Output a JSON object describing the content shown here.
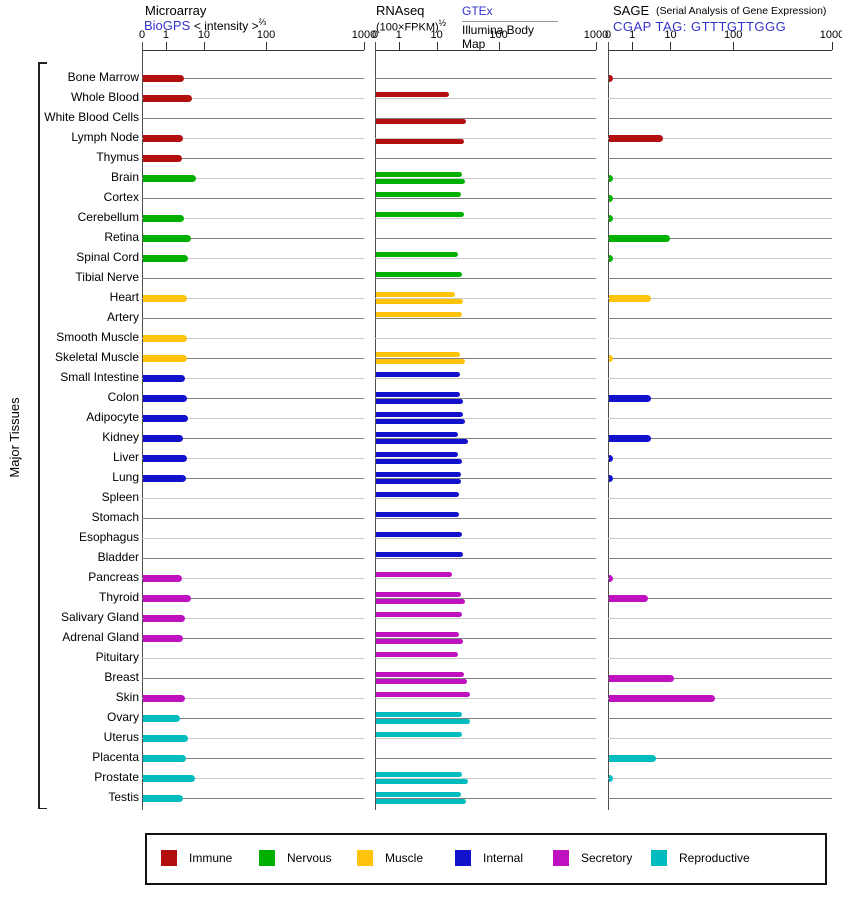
{
  "sidebar": {
    "label": "Major Tissues"
  },
  "panels": {
    "microarray": {
      "title": "Microarray",
      "link": "BioGPS",
      "unit": "< intensity >",
      "unit_sup": "⅔",
      "ticks": [
        "0",
        "1",
        "10",
        "100",
        "1000"
      ]
    },
    "rnaseq": {
      "title": "RNAseq",
      "unit": "(100×FPKM)",
      "unit_sup": "½",
      "link1": "GTEx",
      "link2": "Illumina Body Map",
      "ticks": [
        "0",
        "1",
        "10",
        "100",
        "1000"
      ]
    },
    "sage": {
      "title": "SAGE",
      "note": "(Serial Analysis of Gene Expression)",
      "link": "CGAP TAG: GTTTGTTGGG",
      "ticks": [
        "0",
        "1",
        "10",
        "100",
        "1000"
      ]
    }
  },
  "legend": [
    {
      "label": "Immune",
      "color": "#B40F0F"
    },
    {
      "label": "Nervous",
      "color": "#00B000"
    },
    {
      "label": "Muscle",
      "color": "#FFC30B"
    },
    {
      "label": "Internal",
      "color": "#1212CD"
    },
    {
      "label": "Secretory",
      "color": "#C011C0"
    },
    {
      "label": "Reproductive",
      "color": "#00BCBE"
    }
  ],
  "track_colors": {
    "dark": "#808080",
    "light": "#C9C9C9"
  },
  "chart_data": {
    "type": "bar",
    "orientation": "horizontal",
    "axis_scale": "compressed log, anchors 0/1/10/100/1000 at 0%/10.8%/27.9%/55.9%/100%",
    "axis_ticks": [
      0,
      1,
      10,
      100,
      1000
    ],
    "series_meaning": {
      "microarray": "BioGPS intensity, single bar",
      "rnaseq_gtex": "upper thin bar (GTEx)",
      "rnaseq_bodymap": "lower thin bar (Illumina Body Map)",
      "sage": "CGAP SAGE tag count, single bar (0.15 = tiny tick)"
    },
    "tissues": [
      {
        "name": "Bone Marrow",
        "group": "Immune",
        "microarray": 2.8,
        "rnaseq_gtex": null,
        "rnaseq_bodymap": null,
        "sage": 0.15
      },
      {
        "name": "Whole Blood",
        "group": "Immune",
        "microarray": 4.5,
        "rnaseq_gtex": 15,
        "rnaseq_bodymap": null,
        "sage": null
      },
      {
        "name": "White Blood Cells",
        "group": "Immune",
        "microarray": null,
        "rnaseq_gtex": null,
        "rnaseq_bodymap": 29,
        "sage": null
      },
      {
        "name": "Lymph Node",
        "group": "Immune",
        "microarray": 2.6,
        "rnaseq_gtex": null,
        "rnaseq_bodymap": 27,
        "sage": 6
      },
      {
        "name": "Thymus",
        "group": "Immune",
        "microarray": 2.5,
        "rnaseq_gtex": null,
        "rnaseq_bodymap": null,
        "sage": null
      },
      {
        "name": "Brain",
        "group": "Nervous",
        "microarray": 5.8,
        "rnaseq_gtex": 25,
        "rnaseq_bodymap": 28,
        "sage": 0.15
      },
      {
        "name": "Cortex",
        "group": "Nervous",
        "microarray": null,
        "rnaseq_gtex": 24,
        "rnaseq_bodymap": null,
        "sage": 0.15
      },
      {
        "name": "Cerebellum",
        "group": "Nervous",
        "microarray": 2.8,
        "rnaseq_gtex": 27,
        "rnaseq_bodymap": null,
        "sage": 0.15
      },
      {
        "name": "Retina",
        "group": "Nervous",
        "microarray": 4.3,
        "rnaseq_gtex": null,
        "rnaseq_bodymap": null,
        "sage": 9
      },
      {
        "name": "Spinal Cord",
        "group": "Nervous",
        "microarray": 3.6,
        "rnaseq_gtex": 21,
        "rnaseq_bodymap": null,
        "sage": 0.15
      },
      {
        "name": "Tibial Nerve",
        "group": "Nervous",
        "microarray": null,
        "rnaseq_gtex": 25,
        "rnaseq_bodymap": null,
        "sage": null
      },
      {
        "name": "Heart",
        "group": "Muscle",
        "microarray": 3.4,
        "rnaseq_gtex": 19,
        "rnaseq_bodymap": 26,
        "sage": 3
      },
      {
        "name": "Artery",
        "group": "Muscle",
        "microarray": null,
        "rnaseq_gtex": 25,
        "rnaseq_bodymap": null,
        "sage": null
      },
      {
        "name": "Smooth Muscle",
        "group": "Muscle",
        "microarray": 3.4,
        "rnaseq_gtex": null,
        "rnaseq_bodymap": null,
        "sage": null
      },
      {
        "name": "Skeletal Muscle",
        "group": "Muscle",
        "microarray": 3.4,
        "rnaseq_gtex": 23,
        "rnaseq_bodymap": 28,
        "sage": 0.15
      },
      {
        "name": "Small Intestine",
        "group": "Internal",
        "microarray": 3.0,
        "rnaseq_gtex": 23,
        "rnaseq_bodymap": null,
        "sage": null
      },
      {
        "name": "Colon",
        "group": "Internal",
        "microarray": 3.4,
        "rnaseq_gtex": 23,
        "rnaseq_bodymap": 26,
        "sage": 3
      },
      {
        "name": "Adipocyte",
        "group": "Internal",
        "microarray": 3.6,
        "rnaseq_gtex": 26,
        "rnaseq_bodymap": 28,
        "sage": null
      },
      {
        "name": "Kidney",
        "group": "Internal",
        "microarray": 2.6,
        "rnaseq_gtex": 21,
        "rnaseq_bodymap": 31,
        "sage": 3
      },
      {
        "name": "Liver",
        "group": "Internal",
        "microarray": 3.4,
        "rnaseq_gtex": 21,
        "rnaseq_bodymap": 25,
        "sage": 0.15
      },
      {
        "name": "Lung",
        "group": "Internal",
        "microarray": 3.2,
        "rnaseq_gtex": 24,
        "rnaseq_bodymap": 24,
        "sage": 0.15
      },
      {
        "name": "Spleen",
        "group": "Internal",
        "microarray": null,
        "rnaseq_gtex": 22,
        "rnaseq_bodymap": null,
        "sage": null
      },
      {
        "name": "Stomach",
        "group": "Internal",
        "microarray": null,
        "rnaseq_gtex": 22,
        "rnaseq_bodymap": null,
        "sage": null
      },
      {
        "name": "Esophagus",
        "group": "Internal",
        "microarray": null,
        "rnaseq_gtex": 25,
        "rnaseq_bodymap": null,
        "sage": null
      },
      {
        "name": "Bladder",
        "group": "Internal",
        "microarray": null,
        "rnaseq_gtex": 26,
        "rnaseq_bodymap": null,
        "sage": null
      },
      {
        "name": "Pancreas",
        "group": "Secretory",
        "microarray": 2.5,
        "rnaseq_gtex": 17,
        "rnaseq_bodymap": null,
        "sage": 0.15
      },
      {
        "name": "Thyroid",
        "group": "Secretory",
        "microarray": 4.3,
        "rnaseq_gtex": 24,
        "rnaseq_bodymap": 28,
        "sage": 2.4
      },
      {
        "name": "Salivary Gland",
        "group": "Secretory",
        "microarray": 3.0,
        "rnaseq_gtex": 25,
        "rnaseq_bodymap": null,
        "sage": null
      },
      {
        "name": "Adrenal Gland",
        "group": "Secretory",
        "microarray": 2.6,
        "rnaseq_gtex": 22,
        "rnaseq_bodymap": 26,
        "sage": null
      },
      {
        "name": "Pituitary",
        "group": "Secretory",
        "microarray": null,
        "rnaseq_gtex": 21,
        "rnaseq_bodymap": null,
        "sage": null
      },
      {
        "name": "Breast",
        "group": "Secretory",
        "microarray": null,
        "rnaseq_gtex": 27,
        "rnaseq_bodymap": 30,
        "sage": 11
      },
      {
        "name": "Skin",
        "group": "Secretory",
        "microarray": 3.0,
        "rnaseq_gtex": 33,
        "rnaseq_bodymap": null,
        "sage": 50
      },
      {
        "name": "Ovary",
        "group": "Reproductive",
        "microarray": 2.2,
        "rnaseq_gtex": 25,
        "rnaseq_bodymap": 33,
        "sage": null
      },
      {
        "name": "Uterus",
        "group": "Reproductive",
        "microarray": 3.6,
        "rnaseq_gtex": 25,
        "rnaseq_bodymap": null,
        "sage": null
      },
      {
        "name": "Placenta",
        "group": "Reproductive",
        "microarray": 3.2,
        "rnaseq_gtex": null,
        "rnaseq_bodymap": null,
        "sage": 4
      },
      {
        "name": "Prostate",
        "group": "Reproductive",
        "microarray": 5.5,
        "rnaseq_gtex": 25,
        "rnaseq_bodymap": 31,
        "sage": 0.15
      },
      {
        "name": "Testis",
        "group": "Reproductive",
        "microarray": 2.6,
        "rnaseq_gtex": 24,
        "rnaseq_bodymap": 29,
        "sage": null
      }
    ]
  }
}
